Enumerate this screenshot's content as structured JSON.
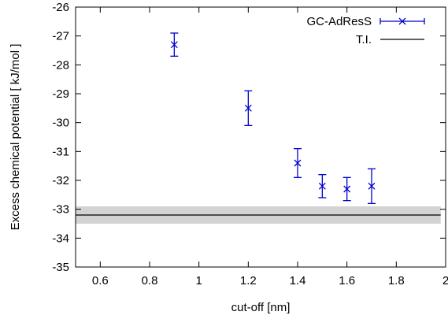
{
  "chart_data": {
    "type": "scatter",
    "xlabel": "cut-off [nm]",
    "ylabel": "Excess chemical potential [ kJ/mol ]",
    "xlim": [
      0.5,
      2.0
    ],
    "ylim": [
      -35,
      -26
    ],
    "xticks": [
      0.6,
      0.8,
      1,
      1.2,
      1.4,
      1.6,
      1.8,
      2
    ],
    "xtick_labels": [
      "0.6",
      "0.8",
      "1",
      "1.2",
      "1.4",
      "1.6",
      "1.8",
      "2"
    ],
    "yticks": [
      -35,
      -34,
      -33,
      -32,
      -31,
      -30,
      -29,
      -28,
      -27,
      -26
    ],
    "ytick_labels": [
      "-35",
      "-34",
      "-33",
      "-32",
      "-31",
      "-30",
      "-29",
      "-28",
      "-27",
      "-26"
    ],
    "grid": false,
    "legend_position": "top-right",
    "series": [
      {
        "name": "GC-AdResS",
        "kind": "scatter-errorbar",
        "marker": "x",
        "color": "#0000cc",
        "x": [
          0.9,
          1.2,
          1.4,
          1.5,
          1.6,
          1.7
        ],
        "y": [
          -27.3,
          -29.5,
          -31.4,
          -32.2,
          -32.3,
          -32.2
        ],
        "yerr": [
          0.4,
          0.6,
          0.5,
          0.4,
          0.4,
          0.6
        ]
      },
      {
        "name": "T.I.",
        "kind": "hline",
        "color": "#000000",
        "y": -33.2,
        "band": [
          -33.5,
          -32.9
        ],
        "band_color": "#d3d3d3",
        "x_range": [
          0.5,
          1.98
        ]
      }
    ]
  }
}
